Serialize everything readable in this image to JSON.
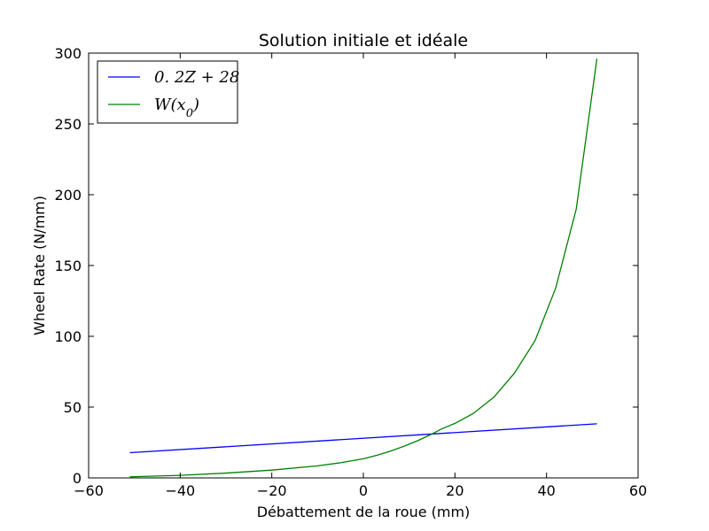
{
  "chart_data": {
    "type": "line",
    "title": "Solution initiale et idéale",
    "xlabel": "Débattement de la roue (mm)",
    "ylabel": "Wheel Rate (N/mm)",
    "xlim": [
      -60,
      60
    ],
    "ylim": [
      0,
      300
    ],
    "xticks": [
      -60,
      -40,
      -20,
      0,
      20,
      40,
      60
    ],
    "yticks": [
      0,
      50,
      100,
      150,
      200,
      250,
      300
    ],
    "xtick_labels": [
      "−60",
      "−40",
      "−20",
      "0",
      "20",
      "40",
      "60"
    ],
    "ytick_labels": [
      "0",
      "50",
      "100",
      "150",
      "200",
      "250",
      "300"
    ],
    "grid": false,
    "legend_position": "upper-left",
    "series": [
      {
        "name": "0. 2Z + 28",
        "color": "#0000ff",
        "x": [
          -51,
          51
        ],
        "y": [
          17.8,
          38.2
        ]
      },
      {
        "name": "W(x0)",
        "color": "#008000",
        "x": [
          -51,
          -40,
          -30,
          -20,
          -10,
          -5,
          0,
          3,
          6,
          9,
          12,
          15,
          17,
          20,
          24,
          28.5,
          33,
          37.5,
          42,
          46.5,
          51
        ],
        "y": [
          0.8,
          1.8,
          3.4,
          5.5,
          8.5,
          10.7,
          13.5,
          16,
          19,
          22.5,
          26.5,
          31,
          34.5,
          38.5,
          45.5,
          57,
          74,
          97,
          134,
          190,
          296
        ]
      }
    ]
  }
}
